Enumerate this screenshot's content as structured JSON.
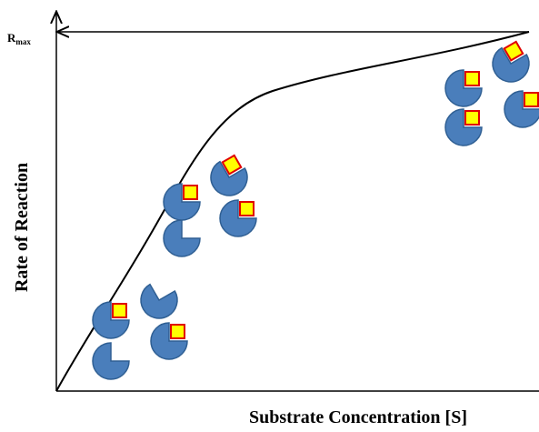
{
  "rmax": {
    "main": "R",
    "sub": "max"
  },
  "y_axis_label": "Rate of Reaction",
  "x_axis_label": "Substrate Concentration [S]"
}
